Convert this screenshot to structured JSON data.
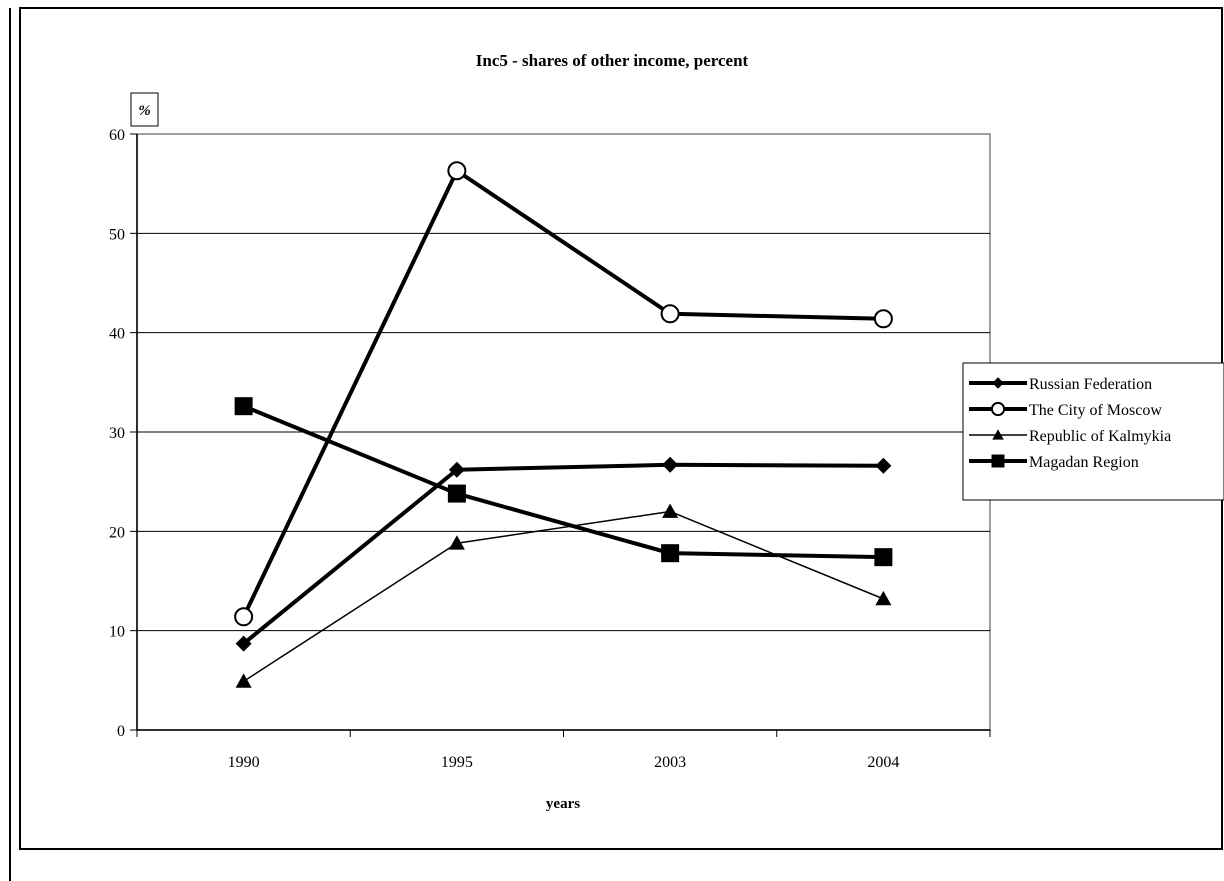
{
  "chart_data": {
    "type": "line",
    "title": "Inc5 -  shares of other income, percent",
    "xlabel": "years",
    "ylabel": "%",
    "categories": [
      "1990",
      "1995",
      "2003",
      "2004"
    ],
    "ylim": [
      0,
      60
    ],
    "yticks": [
      0,
      10,
      20,
      30,
      40,
      50,
      60
    ],
    "grid": true,
    "legend_position": "right",
    "series": [
      {
        "name": "Russian Federation",
        "values": [
          8.7,
          26.2,
          26.7,
          26.6
        ],
        "marker": "diamond",
        "weight": "bold"
      },
      {
        "name": "The City of Moscow",
        "values": [
          11.4,
          56.3,
          41.9,
          41.4
        ],
        "marker": "open-circle",
        "weight": "bold"
      },
      {
        "name": "Republic of Kalmykia",
        "values": [
          4.9,
          18.8,
          22.0,
          13.2
        ],
        "marker": "triangle",
        "weight": "thin"
      },
      {
        "name": "Magadan Region",
        "values": [
          32.6,
          23.8,
          17.8,
          17.4
        ],
        "marker": "square",
        "weight": "bold"
      }
    ]
  }
}
